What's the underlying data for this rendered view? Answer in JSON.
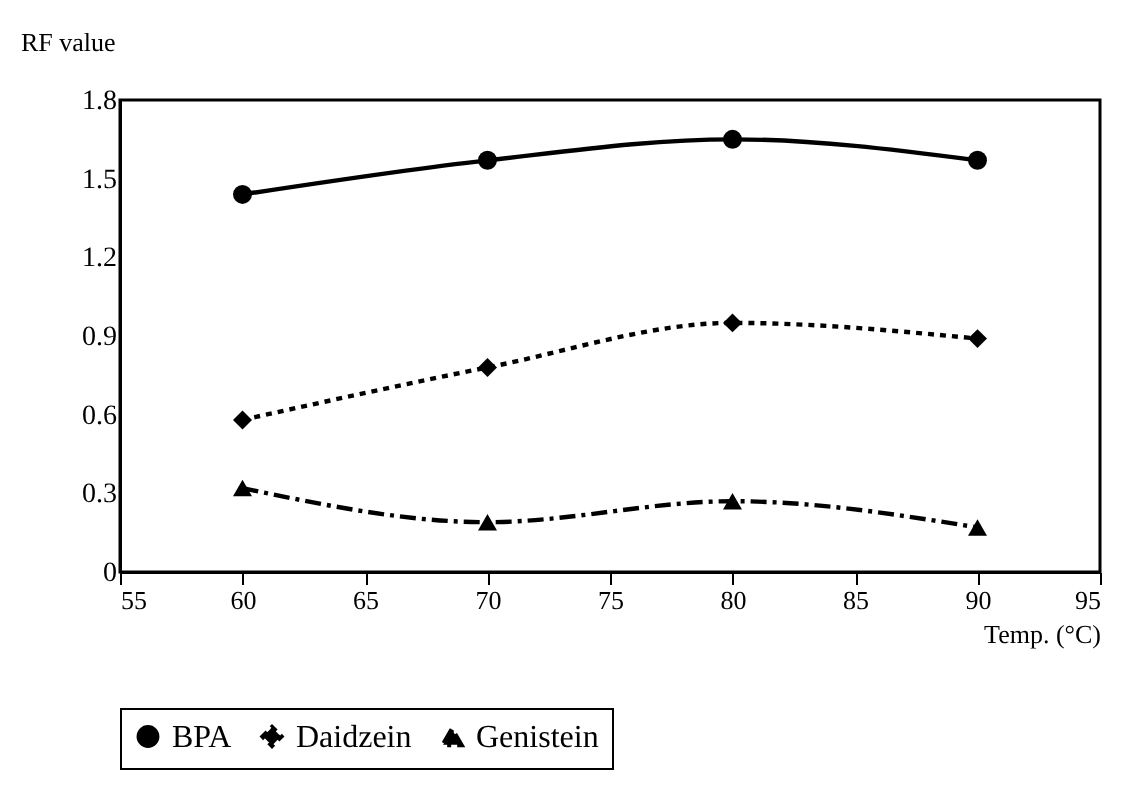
{
  "chart_data": {
    "type": "line",
    "ylabel": "RF value",
    "xlabel": "Temp. (°C)",
    "x": [
      60,
      70,
      80,
      90
    ],
    "series": [
      {
        "name": "BPA",
        "color": "#000000",
        "values": [
          1.44,
          1.57,
          1.65,
          1.57
        ],
        "marker": "circle",
        "line_style": "solid"
      },
      {
        "name": "Daidzein",
        "color": "#000000",
        "values": [
          0.58,
          0.78,
          0.95,
          0.89
        ],
        "marker": "diamond",
        "line_style": "dotted"
      },
      {
        "name": "Genistein",
        "color": "#000000",
        "values": [
          0.32,
          0.19,
          0.27,
          0.17
        ],
        "marker": "triangle",
        "line_style": "dashed"
      }
    ],
    "xlim": [
      55,
      95
    ],
    "xticks": [
      55,
      60,
      65,
      70,
      75,
      80,
      85,
      90,
      95
    ],
    "ylim": [
      0,
      1.8
    ],
    "yticks": [
      0,
      0.3,
      0.6,
      0.9,
      1.2,
      1.5,
      1.8
    ],
    "grid": false,
    "legend": "bottom"
  }
}
